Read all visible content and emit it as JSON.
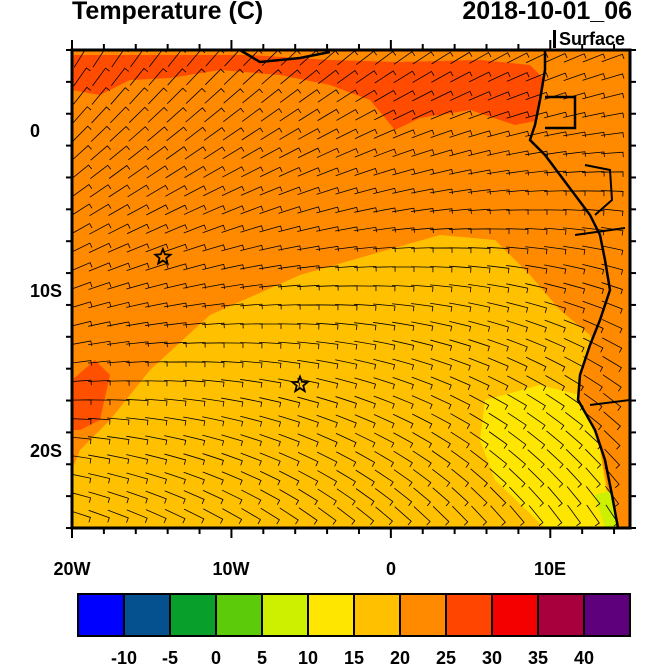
{
  "header": {
    "title": "Temperature (C)",
    "valid_time": "2018-10-01_06",
    "level": "Surface"
  },
  "map": {
    "lon_range": [
      -20,
      15
    ],
    "lat_range": [
      -25,
      5
    ],
    "lon_ticks": [
      {
        "value": -20,
        "label": "20W"
      },
      {
        "value": -10,
        "label": "10W"
      },
      {
        "value": 0,
        "label": "0"
      },
      {
        "value": 10,
        "label": "10E"
      }
    ],
    "lat_ticks": [
      {
        "value": 0,
        "label": "0"
      },
      {
        "value": -10,
        "label": "10S"
      },
      {
        "value": -20,
        "label": "20S"
      }
    ],
    "markers": [
      {
        "name": "star",
        "lon": -14.3,
        "lat": -8.0
      },
      {
        "name": "star",
        "lon": -5.7,
        "lat": -16.0
      }
    ],
    "overlay": "wind barbs"
  },
  "colorbar": {
    "labels": [
      "-10",
      "-5",
      "0",
      "5",
      "10",
      "15",
      "20",
      "25",
      "30",
      "35",
      "40"
    ],
    "colors": [
      "#0000ff",
      "#05508f",
      "#08a02a",
      "#5ccc0a",
      "#ccf000",
      "#ffe600",
      "#ffc000",
      "#ff8a00",
      "#ff4500",
      "#f50000",
      "#a8003c",
      "#5e007c"
    ]
  }
}
